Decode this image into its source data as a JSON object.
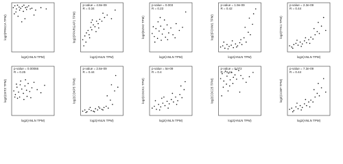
{
  "chart_data": [
    {
      "type": "scatter",
      "annotations": [],
      "xlabel": "log2(ANLN TPM)",
      "ylabel": "log2(PRKCA TPM)",
      "xlim": [
        0,
        8
      ],
      "ylim": [
        0,
        8
      ],
      "x": [
        0.3,
        0.6,
        0.9,
        1.1,
        1.4,
        1.7,
        2.0,
        2.3,
        2.6,
        2.9,
        3.2,
        3.5,
        0.8,
        1.5,
        2.2,
        2.8,
        3.8,
        4.5,
        5.5,
        1.2,
        0.5,
        2.5,
        4.2,
        6.5,
        1.9
      ],
      "y": [
        7.2,
        7.5,
        7.0,
        7.6,
        7.3,
        7.1,
        7.4,
        7.6,
        7.2,
        7.3,
        7.5,
        7.0,
        6.5,
        6.8,
        6.6,
        6.9,
        7.1,
        6.8,
        7.2,
        5.8,
        6.2,
        5.4,
        6.0,
        7.0,
        4.9
      ]
    },
    {
      "type": "scatter",
      "annotations": [
        "p-value = 4.8e-09",
        "R = 0.34"
      ],
      "xlabel": "log2(ANLN TPM)",
      "ylabel": "log2(PPARGAP1 TPM)",
      "xlim": [
        0,
        8
      ],
      "ylim": [
        0,
        8
      ],
      "x": [
        0.4,
        0.8,
        1.1,
        1.4,
        1.6,
        1.9,
        2.1,
        2.4,
        2.7,
        3.0,
        3.3,
        3.6,
        4.0,
        4.5,
        5.0,
        5.8,
        6.5,
        1.0,
        1.7,
        2.2,
        2.9,
        3.4,
        0.6,
        2.0,
        4.2
      ],
      "y": [
        2.0,
        2.6,
        3.1,
        3.5,
        2.8,
        4.0,
        3.6,
        4.4,
        4.1,
        5.0,
        4.6,
        5.3,
        5.0,
        5.6,
        6.0,
        5.4,
        6.8,
        1.6,
        2.3,
        5.2,
        3.3,
        3.9,
        1.0,
        4.8,
        6.3
      ]
    },
    {
      "type": "scatter",
      "annotations": [
        "p-value = 0.003",
        "R = 0.23"
      ],
      "xlabel": "log2(ANLN TPM)",
      "ylabel": "log2(EZH2 TPM)",
      "xlim": [
        0,
        8
      ],
      "ylim": [
        0,
        8
      ],
      "x": [
        0.5,
        0.9,
        1.2,
        1.5,
        1.8,
        2.1,
        2.4,
        2.7,
        3.0,
        3.3,
        3.6,
        4.0,
        4.4,
        5.0,
        5.6,
        6.2,
        1.0,
        1.6,
        2.2,
        2.8,
        3.4,
        0.7,
        2.0,
        4.8,
        6.8
      ],
      "y": [
        3.0,
        2.5,
        3.8,
        2.2,
        3.4,
        4.2,
        2.9,
        3.7,
        2.4,
        4.4,
        3.1,
        3.9,
        2.8,
        4.6,
        3.5,
        4.0,
        1.6,
        4.9,
        1.9,
        5.2,
        2.0,
        4.1,
        5.6,
        2.3,
        6.5
      ]
    },
    {
      "type": "scatter",
      "annotations": [
        "p-value = 1.9e-09",
        "R = 0.42"
      ],
      "xlabel": "log2(ANLN TPM)",
      "ylabel": "log2(FOXM1 TPM)",
      "xlim": [
        0,
        8
      ],
      "ylim": [
        0,
        8
      ],
      "x": [
        0.4,
        0.8,
        1.2,
        1.6,
        2.0,
        2.4,
        2.8,
        3.2,
        3.6,
        4.0,
        4.4,
        4.8,
        5.2,
        5.6,
        6.0,
        6.4,
        1.0,
        1.8,
        2.6,
        3.4,
        4.2,
        5.0,
        5.8,
        6.6,
        7.0
      ],
      "y": [
        0.8,
        1.0,
        0.6,
        1.2,
        0.9,
        1.1,
        0.7,
        1.3,
        1.0,
        1.5,
        1.2,
        2.3,
        1.6,
        3.2,
        2.8,
        4.5,
        1.6,
        0.5,
        1.8,
        0.8,
        2.0,
        4.0,
        5.5,
        6.2,
        7.0
      ]
    },
    {
      "type": "scatter",
      "annotations": [
        "p-value = 2.3e-09",
        "R = 0.44"
      ],
      "xlabel": "log2(ANLN TPM)",
      "ylabel": "log2(TTK1 TPM)",
      "xlim": [
        0,
        8
      ],
      "ylim": [
        0,
        8
      ],
      "x": [
        0.4,
        0.8,
        1.2,
        1.6,
        2.0,
        2.4,
        2.8,
        3.2,
        3.6,
        4.0,
        4.4,
        4.8,
        5.2,
        5.6,
        6.0,
        6.4,
        1.0,
        1.8,
        2.6,
        3.4,
        4.2,
        5.0,
        5.8,
        6.8,
        7.2
      ],
      "y": [
        1.0,
        0.8,
        1.2,
        1.4,
        1.1,
        1.6,
        1.3,
        1.8,
        1.5,
        2.0,
        2.4,
        2.1,
        2.8,
        3.3,
        3.0,
        4.2,
        0.6,
        1.9,
        0.9,
        2.3,
        1.4,
        3.8,
        4.8,
        5.6,
        3.5
      ]
    },
    {
      "type": "scatter",
      "annotations": [
        "p-value = 0.00066",
        "R = 0.25"
      ],
      "xlabel": "log2(ANLN TPM)",
      "ylabel": "log2(CETZ TPM)",
      "xlim": [
        0,
        8
      ],
      "ylim": [
        0,
        8
      ],
      "x": [
        0.4,
        0.7,
        1.0,
        1.3,
        1.6,
        1.9,
        2.2,
        2.5,
        2.8,
        3.1,
        3.4,
        3.8,
        4.2,
        4.8,
        5.5,
        1.1,
        1.7,
        2.3,
        2.9,
        0.9,
        1.5,
        2.6,
        3.6,
        6.2,
        0.6
      ],
      "y": [
        4.0,
        3.4,
        4.6,
        3.8,
        5.0,
        4.3,
        3.6,
        4.8,
        4.1,
        5.2,
        3.9,
        4.5,
        5.4,
        4.2,
        3.7,
        2.8,
        5.6,
        2.6,
        3.1,
        5.1,
        3.0,
        5.8,
        2.9,
        4.9,
        3.0
      ]
    },
    {
      "type": "scatter",
      "annotations": [
        "p-value = 2.6e-09",
        "R = 0.44"
      ],
      "xlabel": "log2(ANLN TPM)",
      "ylabel": "log2(CDKP5 TPM)",
      "xlim": [
        0,
        8
      ],
      "ylim": [
        0,
        8
      ],
      "x": [
        0.4,
        0.8,
        1.2,
        1.6,
        2.0,
        2.4,
        2.8,
        3.2,
        3.6,
        4.0,
        4.4,
        4.8,
        5.2,
        5.6,
        6.0,
        6.4,
        1.0,
        1.8,
        2.6,
        3.4,
        4.2,
        5.0,
        5.8,
        6.6,
        7.0
      ],
      "y": [
        0.7,
        0.9,
        0.6,
        1.0,
        0.8,
        0.7,
        1.1,
        0.9,
        1.2,
        1.0,
        1.3,
        1.5,
        1.2,
        2.5,
        1.8,
        4.0,
        0.5,
        1.3,
        0.6,
        1.4,
        0.9,
        3.2,
        5.0,
        6.5,
        4.6
      ]
    },
    {
      "type": "scatter",
      "annotations": [
        "p-value = 5e-09",
        "R = 0.4"
      ],
      "xlabel": "log2(ANLN TPM)",
      "ylabel": "log2(CDCK1 TPM)",
      "xlim": [
        0,
        8
      ],
      "ylim": [
        0,
        8
      ],
      "x": [
        0.5,
        0.9,
        1.3,
        1.7,
        2.1,
        2.5,
        2.9,
        3.3,
        3.7,
        4.1,
        4.5,
        4.9,
        5.3,
        5.7,
        6.1,
        6.5,
        1.1,
        1.9,
        2.7,
        3.5,
        4.3,
        5.1,
        5.9,
        6.7,
        2.3
      ],
      "y": [
        1.2,
        1.5,
        1.0,
        1.8,
        1.4,
        2.0,
        1.6,
        2.3,
        1.9,
        2.6,
        2.2,
        3.0,
        2.4,
        3.4,
        2.9,
        4.2,
        2.4,
        0.9,
        3.0,
        1.2,
        3.6,
        1.8,
        4.8,
        5.5,
        2.8
      ]
    },
    {
      "type": "scatter",
      "annotations": [
        "p-value = 0.072",
        "R = 0.11"
      ],
      "xlabel": "log2(ANLN TPM)",
      "ylabel": "log2(CDC25 TPM)",
      "xlim": [
        0,
        8
      ],
      "ylim": [
        0,
        8
      ],
      "x": [
        0.4,
        0.7,
        1.0,
        1.3,
        1.6,
        1.9,
        2.2,
        2.5,
        2.8,
        3.1,
        3.4,
        3.8,
        4.2,
        4.6,
        5.2,
        5.8,
        0.9,
        1.5,
        2.1,
        2.7,
        3.3,
        0.6,
        1.8,
        4.0,
        6.5
      ],
      "y": [
        6.0,
        6.8,
        5.6,
        7.2,
        6.4,
        6.9,
        5.8,
        7.0,
        6.2,
        6.6,
        5.9,
        7.3,
        6.5,
        6.0,
        5.4,
        6.3,
        4.6,
        5.1,
        4.8,
        5.2,
        7.5,
        3.2,
        4.0,
        3.8,
        7.0
      ]
    },
    {
      "type": "scatter",
      "annotations": [
        "p-value = 7.3e-09",
        "R = 0.44"
      ],
      "xlabel": "log2(ANLN TPM)",
      "ylabel": "log2(CCBP TPM)",
      "xlim": [
        0,
        8
      ],
      "ylim": [
        0,
        8
      ],
      "x": [
        0.4,
        0.8,
        1.2,
        1.6,
        2.0,
        2.4,
        2.8,
        3.2,
        3.6,
        4.0,
        4.4,
        4.8,
        5.2,
        5.6,
        6.0,
        6.4,
        1.0,
        1.8,
        2.6,
        3.4,
        4.2,
        5.0,
        5.8,
        6.8,
        7.2
      ],
      "y": [
        1.0,
        1.2,
        0.8,
        1.4,
        1.1,
        1.6,
        1.3,
        1.9,
        1.6,
        2.2,
        2.5,
        2.2,
        3.0,
        3.6,
        3.2,
        4.5,
        0.6,
        2.0,
        0.9,
        2.6,
        1.4,
        4.2,
        5.2,
        6.0,
        3.8
      ]
    }
  ]
}
